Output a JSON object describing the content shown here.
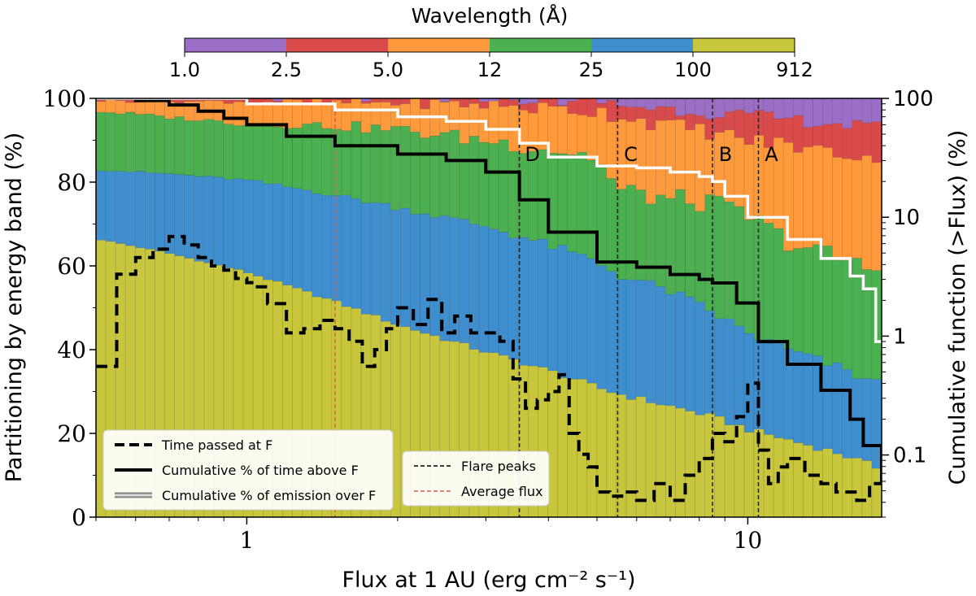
{
  "chart_data": {
    "type": "bar",
    "subtype": "stacked-percentage-histogram-with-step-lines",
    "xlabel": "Flux at 1 AU (erg cm⁻² s⁻¹)",
    "xscale": "log",
    "xlim": [
      0.5,
      18.5
    ],
    "x_ticks": [
      {
        "v": 1,
        "label": "1"
      },
      {
        "v": 10,
        "label": "10"
      }
    ],
    "ylabel": "Partitioning by energy band (%)",
    "ylim": [
      0,
      100
    ],
    "y_ticks": [
      "0",
      "20",
      "40",
      "60",
      "80",
      "100"
    ],
    "y2label": "Cumulative function (>Flux) (%)",
    "y2scale": "log",
    "y2lim": [
      0.03,
      100
    ],
    "y2_ticks": [
      {
        "v": 0.1,
        "label": "0.1"
      },
      {
        "v": 1,
        "label": "1"
      },
      {
        "v": 10,
        "label": "10"
      },
      {
        "v": 100,
        "label": "100"
      }
    ],
    "colorbar": {
      "title": "Wavelength (Å)",
      "tick_labels": [
        "1.0",
        "2.5",
        "5.0",
        "12",
        "25",
        "100",
        "912"
      ],
      "colors": [
        "#9b6fc6",
        "#d94b4b",
        "#ff9a3c",
        "#4caf50",
        "#3f8fcf",
        "#c8c63c"
      ]
    },
    "bands": [
      {
        "name": "912-100 Å",
        "color": "#c8c63c"
      },
      {
        "name": "100-25 Å",
        "color": "#3f8fcf"
      },
      {
        "name": "25-12 Å",
        "color": "#4caf50"
      },
      {
        "name": "12-5.0 Å",
        "color": "#ff9a3c"
      },
      {
        "name": "5.0-2.5 Å",
        "color": "#d94b4b"
      },
      {
        "name": "2.5-1.0 Å",
        "color": "#9b6fc6"
      }
    ],
    "n_bins": 80,
    "boundary_anchors": {
      "x": [
        0.5,
        0.7,
        1.0,
        1.5,
        2.0,
        3.0,
        4.0,
        5.0,
        5.5,
        7.0,
        8.5,
        10.0,
        12.0,
        15.0,
        18.0
      ],
      "b1": [
        66.5,
        63,
        58.5,
        51.5,
        46,
        39.5,
        35,
        31,
        29.5,
        26.5,
        24,
        21,
        18.5,
        15.5,
        12
      ],
      "b2": [
        83,
        82,
        80.5,
        77,
        74,
        69.5,
        65,
        61,
        58,
        54,
        49,
        44,
        40,
        36,
        32
      ],
      "b3": [
        97,
        95.5,
        94,
        93.5,
        92.5,
        90,
        88,
        86,
        78,
        76,
        75,
        72,
        66,
        62,
        59
      ],
      "b4": [
        99.5,
        99.3,
        99.3,
        99,
        99,
        98.5,
        97.5,
        97,
        96,
        93.5,
        92,
        90,
        89,
        87,
        86
      ],
      "b5": [
        99.9,
        99.9,
        99.9,
        99.9,
        99.8,
        99.8,
        99.6,
        99.5,
        98.5,
        97.5,
        96.5,
        96,
        95,
        94,
        93
      ]
    },
    "series": [
      {
        "name": "Time passed at F",
        "axis": "left",
        "style": "dashed-black",
        "x": [
          0.5,
          0.55,
          0.6,
          0.65,
          0.7,
          0.75,
          0.8,
          0.85,
          0.9,
          0.95,
          1.0,
          1.05,
          1.1,
          1.2,
          1.3,
          1.4,
          1.5,
          1.6,
          1.7,
          1.8,
          1.9,
          2.0,
          2.15,
          2.3,
          2.45,
          2.6,
          2.8,
          3.0,
          3.2,
          3.4,
          3.6,
          3.8,
          4.0,
          4.2,
          4.4,
          4.6,
          4.8,
          5.0,
          5.3,
          5.6,
          6.0,
          6.5,
          7.0,
          7.5,
          8.0,
          8.5,
          9.0,
          9.5,
          10.0,
          10.5,
          11.0,
          11.5,
          12.0,
          13.0,
          14.0,
          15.0,
          16.5,
          17.5,
          18.5
        ],
        "y": [
          36,
          58,
          62,
          64,
          67,
          65,
          62,
          60,
          59,
          57,
          56,
          55,
          51,
          44,
          45,
          47,
          45,
          42,
          36,
          40,
          45,
          50,
          46,
          52,
          44,
          48,
          44,
          44,
          42,
          33,
          26,
          28,
          30,
          34,
          20,
          15,
          12,
          6,
          5,
          6,
          4,
          8,
          4,
          10,
          14,
          20,
          18,
          24,
          32,
          16,
          8,
          12,
          14,
          10,
          8,
          6,
          4,
          8,
          10
        ]
      },
      {
        "name": "Cumulative % of time above F",
        "axis": "right",
        "style": "solid-black",
        "x": [
          0.5,
          0.6,
          0.7,
          0.8,
          0.9,
          1.0,
          1.2,
          1.5,
          2.0,
          2.5,
          3.0,
          3.5,
          4.0,
          5.0,
          6.0,
          7.0,
          8.0,
          8.5,
          9.5,
          10.5,
          12.0,
          14.0,
          16.0,
          17.0,
          18.5
        ],
        "y": [
          100,
          96,
          88,
          78,
          68,
          60,
          48,
          40,
          34,
          30,
          24,
          14,
          7.5,
          4.2,
          3.8,
          3.3,
          3.0,
          2.8,
          1.9,
          0.9,
          0.58,
          0.35,
          0.2,
          0.12,
          0.06
        ]
      },
      {
        "name": "Cumulative % of emission over F",
        "axis": "right",
        "style": "solid-white",
        "x": [
          0.5,
          1.0,
          1.5,
          2.0,
          2.5,
          3.0,
          3.5,
          4.0,
          5.0,
          6.0,
          7.0,
          8.0,
          8.5,
          9.0,
          10.0,
          12.0,
          14.0,
          16.0,
          17.0,
          18.0,
          18.5
        ],
        "y": [
          100,
          90,
          80,
          70,
          64,
          55,
          42,
          32,
          27,
          26,
          24,
          22,
          20,
          15,
          10,
          6.5,
          4.5,
          3.2,
          2.5,
          0.9,
          0.9
        ]
      }
    ],
    "vlines": [
      {
        "x": 1.5,
        "style": "dashed-red",
        "name": "Average flux"
      },
      {
        "x": 3.5,
        "style": "dashed-black",
        "label": "D"
      },
      {
        "x": 5.5,
        "style": "dashed-black",
        "label": "C"
      },
      {
        "x": 8.5,
        "style": "dashed-black",
        "label": "B"
      },
      {
        "x": 10.5,
        "style": "dashed-black",
        "label": "A"
      }
    ],
    "legend1": {
      "position": "bottom-left",
      "entries": [
        {
          "label": "Time passed at F",
          "style": "dashed-black"
        },
        {
          "label": "Cumulative % of time above F",
          "style": "solid-black"
        },
        {
          "label": "Cumulative % of emission over F",
          "style": "solid-white"
        }
      ]
    },
    "legend2": {
      "position": "bottom-center",
      "entries": [
        {
          "label": "Flare peaks",
          "style": "dashed-black"
        },
        {
          "label": "Average flux",
          "style": "dashed-red"
        }
      ]
    }
  }
}
